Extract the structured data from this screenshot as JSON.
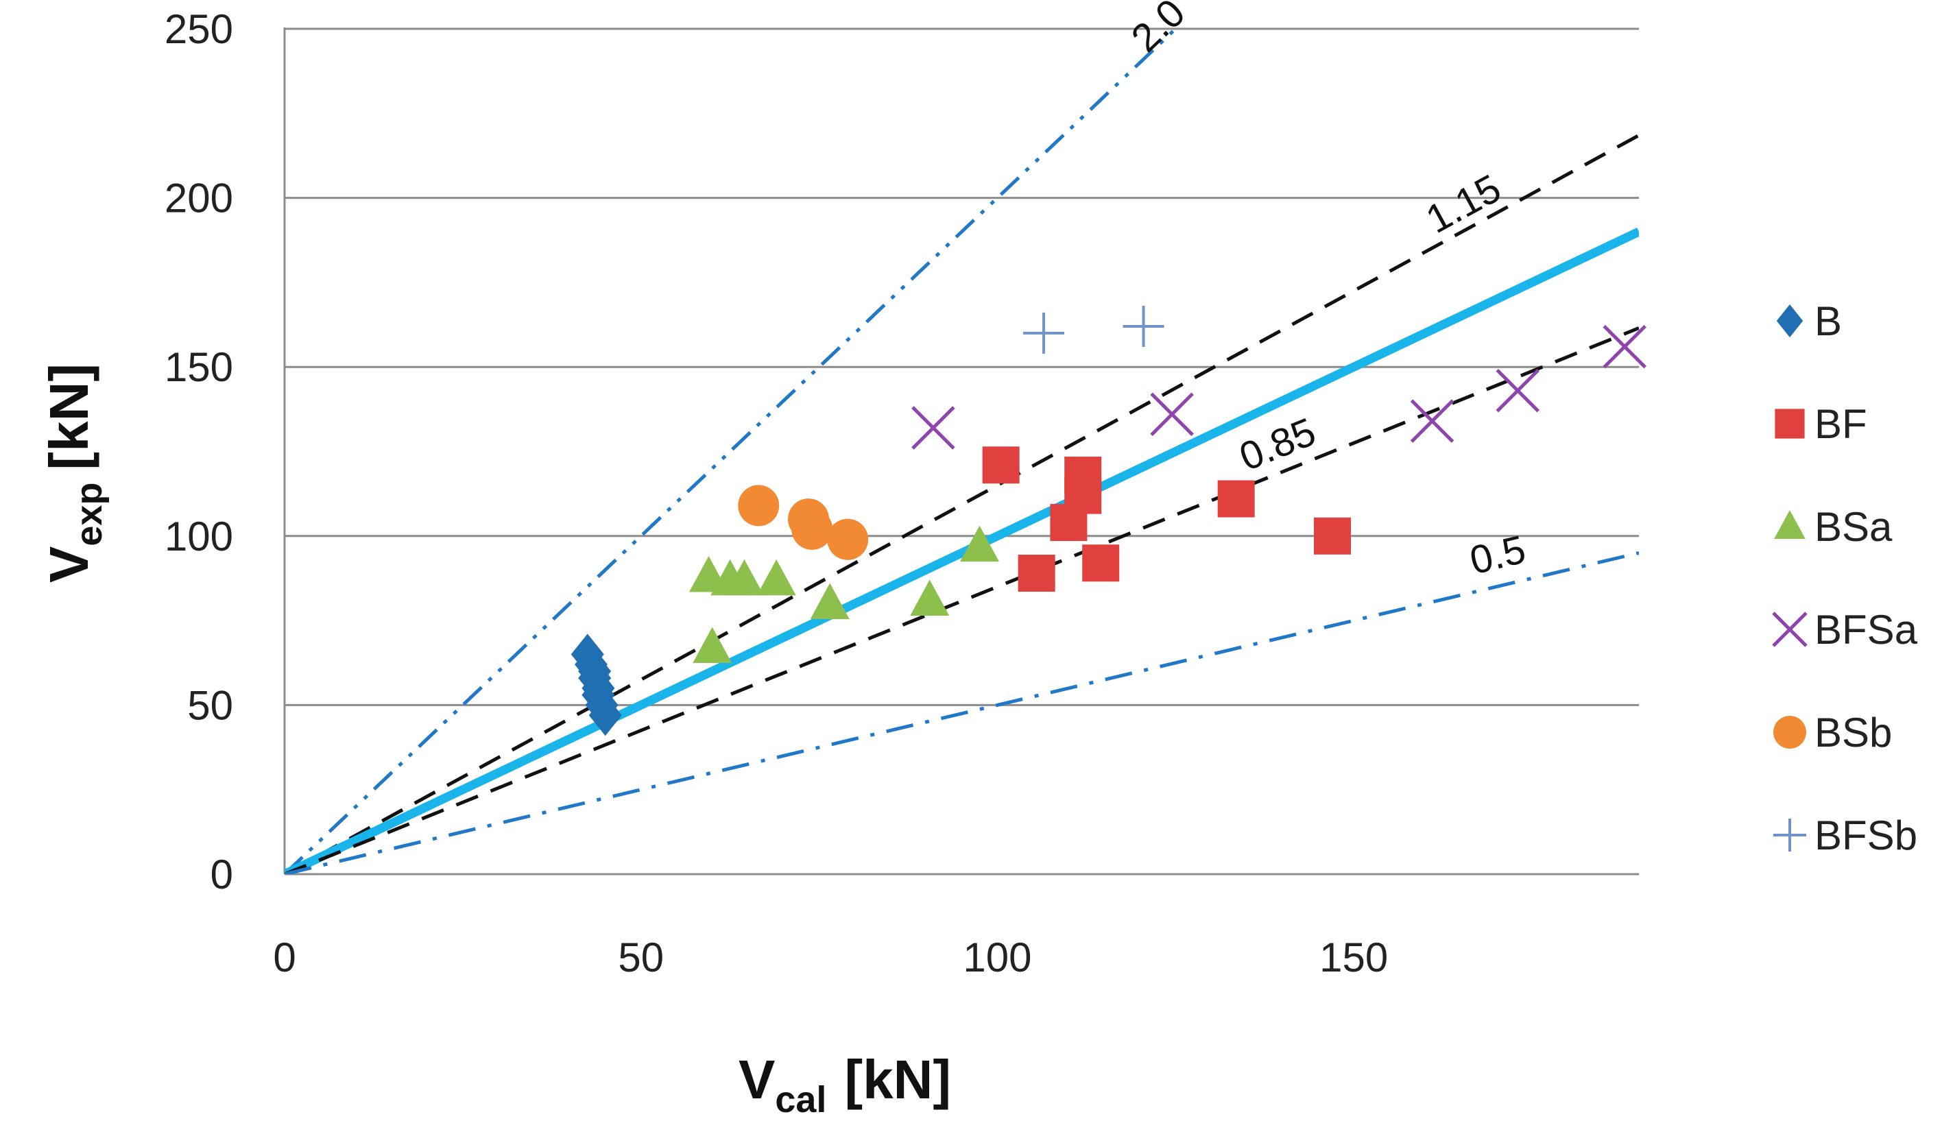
{
  "chart_data": {
    "type": "scatter",
    "title": "",
    "xlabel": {
      "main": "V",
      "sub": "cal",
      "unit": "[kN]"
    },
    "ylabel": {
      "main": "V",
      "sub": "exp",
      "unit": "[kN]"
    },
    "xlim": [
      0,
      190
    ],
    "ylim": [
      0,
      250
    ],
    "xticks": [
      0,
      50,
      100,
      150
    ],
    "yticks": [
      0,
      50,
      100,
      150,
      200,
      250
    ],
    "grid": "horizontal",
    "legend_position": "right",
    "reference_lines": [
      {
        "name": "2.0",
        "slope": 2.0,
        "label": "2.0",
        "style": "dash-dot-dot",
        "color": "#1f78c8"
      },
      {
        "name": "1.15",
        "slope": 1.15,
        "label": "1.15",
        "style": "dashed",
        "color": "#111111"
      },
      {
        "name": "1.0",
        "slope": 1.0,
        "label": "",
        "style": "solid",
        "color": "#19b4ea"
      },
      {
        "name": "0.85",
        "slope": 0.85,
        "label": "0.85",
        "style": "dashed",
        "color": "#111111"
      },
      {
        "name": "0.5",
        "slope": 0.5,
        "label": "0.5",
        "style": "dash-dot",
        "color": "#1f78c8"
      }
    ],
    "series": [
      {
        "name": "B",
        "marker": "diamond",
        "color": "#1f6fb2",
        "points": [
          [
            42.5,
            65
          ],
          [
            43,
            62
          ],
          [
            43.5,
            60
          ],
          [
            43.5,
            58
          ],
          [
            44,
            55
          ],
          [
            44,
            53
          ],
          [
            44.5,
            50
          ],
          [
            45,
            47
          ]
        ]
      },
      {
        "name": "BF",
        "marker": "square",
        "color": "#e0413f",
        "points": [
          [
            100.5,
            121
          ],
          [
            105.5,
            89
          ],
          [
            110,
            104
          ],
          [
            112,
            118
          ],
          [
            112,
            112
          ],
          [
            114.5,
            92
          ],
          [
            133.5,
            111
          ],
          [
            147,
            100
          ]
        ]
      },
      {
        "name": "BSa",
        "marker": "triangle",
        "color": "#8cbf4c",
        "points": [
          [
            59.5,
            88
          ],
          [
            62.5,
            87
          ],
          [
            64.5,
            87
          ],
          [
            69,
            87
          ],
          [
            60,
            67
          ],
          [
            76.5,
            80
          ],
          [
            90.5,
            81
          ],
          [
            97.5,
            97
          ]
        ]
      },
      {
        "name": "BFSa",
        "marker": "x",
        "color": "#8e44ad",
        "points": [
          [
            91,
            132
          ],
          [
            124.5,
            136
          ],
          [
            161,
            134
          ],
          [
            173,
            143
          ],
          [
            188,
            156
          ]
        ]
      },
      {
        "name": "BSb",
        "marker": "circle",
        "color": "#f18a33",
        "points": [
          [
            66.5,
            109
          ],
          [
            73.5,
            105
          ],
          [
            74,
            102
          ],
          [
            79,
            99
          ]
        ]
      },
      {
        "name": "BFSb",
        "marker": "plus",
        "color": "#6f93c8",
        "points": [
          [
            106.5,
            160
          ],
          [
            120.5,
            162
          ]
        ]
      }
    ]
  }
}
